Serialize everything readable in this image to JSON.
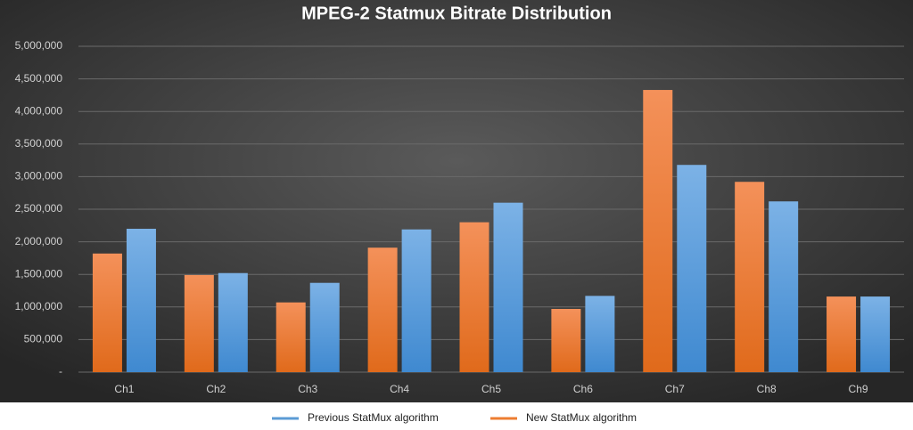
{
  "chart_data": {
    "type": "bar",
    "title": "MPEG-2  Statmux  Bitrate  Distribution",
    "categories": [
      "Ch1",
      "Ch2",
      "Ch3",
      "Ch4",
      "Ch5",
      "Ch6",
      "Ch7",
      "Ch8",
      "Ch9"
    ],
    "series": [
      {
        "name": "Previous StatMux algorithm",
        "color": "#5b9bd5",
        "values": [
          2200000,
          1520000,
          1370000,
          2190000,
          2600000,
          1170000,
          3180000,
          2620000,
          1160000
        ]
      },
      {
        "name": "New StatMux algorithm",
        "color": "#ed7d31",
        "values": [
          1820000,
          1490000,
          1070000,
          1910000,
          2300000,
          970000,
          4330000,
          2920000,
          1160000
        ]
      }
    ],
    "ylim": [
      0,
      5000000
    ],
    "yticks": [
      {
        "value": 0,
        "label": "-"
      },
      {
        "value": 500000,
        "label": "500,000"
      },
      {
        "value": 1000000,
        "label": "1,000,000"
      },
      {
        "value": 1500000,
        "label": "1,500,000"
      },
      {
        "value": 2000000,
        "label": "2,000,000"
      },
      {
        "value": 2500000,
        "label": "2,500,000"
      },
      {
        "value": 3000000,
        "label": "3,000,000"
      },
      {
        "value": 3500000,
        "label": "3,500,000"
      },
      {
        "value": 4000000,
        "label": "4,000,000"
      },
      {
        "value": 4500000,
        "label": "4,500,000"
      },
      {
        "value": 5000000,
        "label": "5,000,000"
      }
    ],
    "grid": true,
    "legend": "bottom"
  }
}
